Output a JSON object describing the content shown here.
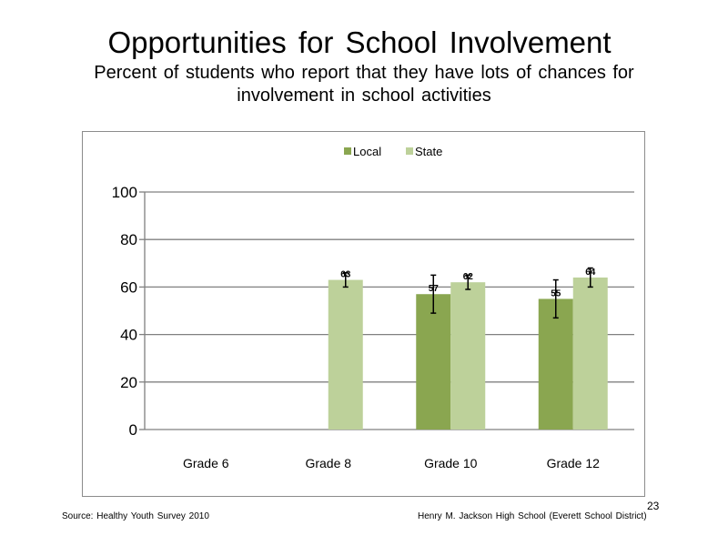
{
  "slide": {
    "title": "Opportunities for School Involvement",
    "subtitle": "Percent of students who report that they have lots of chances for involvement in school activities",
    "source": "Source: Healthy Youth Survey 2010",
    "school": "Henry M. Jackson High School (Everett School District)",
    "page_number": "23"
  },
  "chart_data": {
    "type": "bar",
    "title": "",
    "xlabel": "",
    "ylabel": "",
    "categories": [
      "Grade 6",
      "Grade 8",
      "Grade 10",
      "Grade 12"
    ],
    "series": [
      {
        "name": "Local",
        "color": "#8aa650",
        "values": [
          null,
          null,
          57,
          55
        ],
        "labels": [
          "",
          "",
          "57",
          "55"
        ],
        "error_low": [
          null,
          null,
          49,
          47
        ],
        "error_high": [
          null,
          null,
          65,
          63
        ]
      },
      {
        "name": "State",
        "color": "#bdd19a",
        "values": [
          null,
          63,
          62,
          64
        ],
        "labels": [
          "",
          "63",
          "62",
          "64"
        ],
        "error_low": [
          null,
          60,
          59,
          60
        ],
        "error_high": [
          null,
          66,
          65,
          68
        ]
      }
    ],
    "ylim": [
      0,
      100
    ],
    "yticks": [
      0,
      20,
      40,
      60,
      80,
      100
    ],
    "grid": true,
    "legend_position": "top"
  }
}
